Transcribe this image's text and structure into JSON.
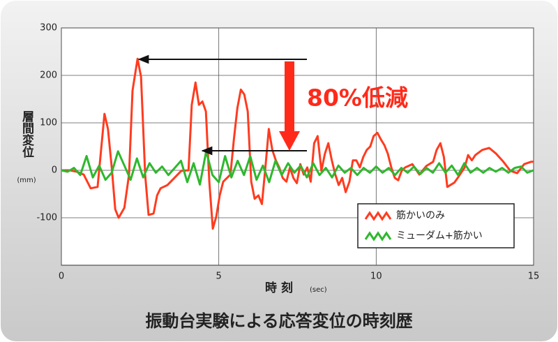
{
  "chart_data": {
    "type": "line",
    "title": "振動台実験による応答変位の時刻歴",
    "y_label": "層間変位",
    "y_unit": "(mm)",
    "x_label": "時 刻",
    "x_unit": "(sec)",
    "annotation": "80%低減",
    "xlim": [
      0,
      15
    ],
    "xticks": [
      0,
      5,
      10,
      15
    ],
    "ylim": [
      -200,
      300
    ],
    "yticks": [
      -100,
      0,
      100,
      200,
      300
    ],
    "grid": true,
    "legend": "lower right",
    "series": [
      {
        "name": "筋かいのみ",
        "color": "#ff3b1f",
        "x": [
          0,
          0.27,
          0.49,
          0.71,
          0.93,
          1.15,
          1.37,
          1.48,
          1.6,
          1.71,
          1.82,
          2.0,
          2.15,
          2.26,
          2.42,
          2.53,
          2.66,
          2.77,
          2.93,
          3.04,
          3.15,
          3.37,
          3.59,
          3.81,
          4.04,
          4.14,
          4.26,
          4.37,
          4.48,
          4.59,
          4.7,
          4.81,
          4.92,
          5.03,
          5.14,
          5.37,
          5.48,
          5.59,
          5.7,
          5.81,
          5.92,
          6.03,
          6.14,
          6.26,
          6.37,
          6.48,
          6.59,
          6.7,
          6.81,
          6.92,
          7.03,
          7.15,
          7.26,
          7.37,
          7.48,
          7.59,
          7.7,
          7.81,
          7.92,
          8.03,
          8.14,
          8.26,
          8.37,
          8.48,
          8.59,
          8.7,
          8.81,
          8.92,
          9.03,
          9.15,
          9.26,
          9.37,
          9.48,
          9.59,
          9.7,
          9.81,
          9.92,
          10.04,
          10.15,
          10.26,
          10.37,
          10.48,
          10.59,
          10.7,
          10.81,
          10.92,
          11.15,
          11.37,
          11.59,
          11.81,
          11.92,
          12.04,
          12.15,
          12.26,
          12.48,
          12.59,
          12.81,
          12.92,
          13.04,
          13.15,
          13.37,
          13.59,
          13.81,
          14.04,
          14.26,
          14.48,
          14.7,
          14.92,
          15
        ],
        "values": [
          0,
          0,
          -3,
          -9,
          -38,
          -35,
          119,
          87,
          6,
          -82,
          -100,
          -79,
          -9,
          168,
          235,
          197,
          -9,
          -94,
          -91,
          -53,
          -38,
          -31,
          -16,
          -1,
          0,
          138,
          185,
          138,
          145,
          124,
          -24,
          -123,
          -97,
          -53,
          -24,
          -9,
          65,
          131,
          170,
          160,
          124,
          -24,
          -60,
          -53,
          -71,
          6,
          87,
          43,
          21,
          6,
          -16,
          -24,
          6,
          -16,
          -27,
          13,
          -9,
          6,
          -24,
          57,
          72,
          -1,
          35,
          57,
          21,
          -9,
          -31,
          -16,
          -46,
          -24,
          21,
          21,
          6,
          28,
          43,
          50,
          72,
          79,
          65,
          53,
          35,
          6,
          -16,
          -21,
          -1,
          6,
          13,
          -9,
          9,
          18,
          43,
          57,
          28,
          -35,
          -26,
          -16,
          6,
          32,
          21,
          32,
          43,
          47,
          35,
          18,
          -1,
          -6,
          13,
          18,
          18
        ]
      },
      {
        "name": "ミューダム+筋かい",
        "color": "#2db82d",
        "x": [
          0,
          0.2,
          0.4,
          0.6,
          0.8,
          1.0,
          1.2,
          1.4,
          1.6,
          1.8,
          2.0,
          2.2,
          2.4,
          2.6,
          2.8,
          3.0,
          3.2,
          3.4,
          3.6,
          3.8,
          4.0,
          4.2,
          4.4,
          4.6,
          4.8,
          5.0,
          5.2,
          5.4,
          5.6,
          5.8,
          6.0,
          6.2,
          6.4,
          6.6,
          6.8,
          7.0,
          7.2,
          7.4,
          7.6,
          7.8,
          8.0,
          8.2,
          8.4,
          8.6,
          8.8,
          9.0,
          9.2,
          9.4,
          9.6,
          9.8,
          10.0,
          10.2,
          10.4,
          10.6,
          10.8,
          11.0,
          11.2,
          11.4,
          11.6,
          11.8,
          12.0,
          12.2,
          12.4,
          12.6,
          12.8,
          13.0,
          13.2,
          13.4,
          13.6,
          13.8,
          14.0,
          14.2,
          14.4,
          14.6,
          14.8,
          15.0
        ],
        "values": [
          0,
          -3,
          5,
          -10,
          30,
          -15,
          10,
          -20,
          -5,
          40,
          10,
          -20,
          25,
          -15,
          15,
          -5,
          8,
          -10,
          5,
          20,
          -25,
          15,
          -30,
          40,
          -10,
          -25,
          30,
          -15,
          20,
          -10,
          30,
          -20,
          10,
          -25,
          20,
          -10,
          15,
          -5,
          10,
          -15,
          15,
          -10,
          5,
          -15,
          10,
          -5,
          5,
          -10,
          5,
          -5,
          8,
          -5,
          5,
          -10,
          5,
          -5,
          8,
          -8,
          5,
          -5,
          15,
          -5,
          10,
          -10,
          15,
          -5,
          5,
          -5,
          5,
          -3,
          5,
          -5,
          5,
          8,
          -5,
          0
        ]
      }
    ]
  }
}
